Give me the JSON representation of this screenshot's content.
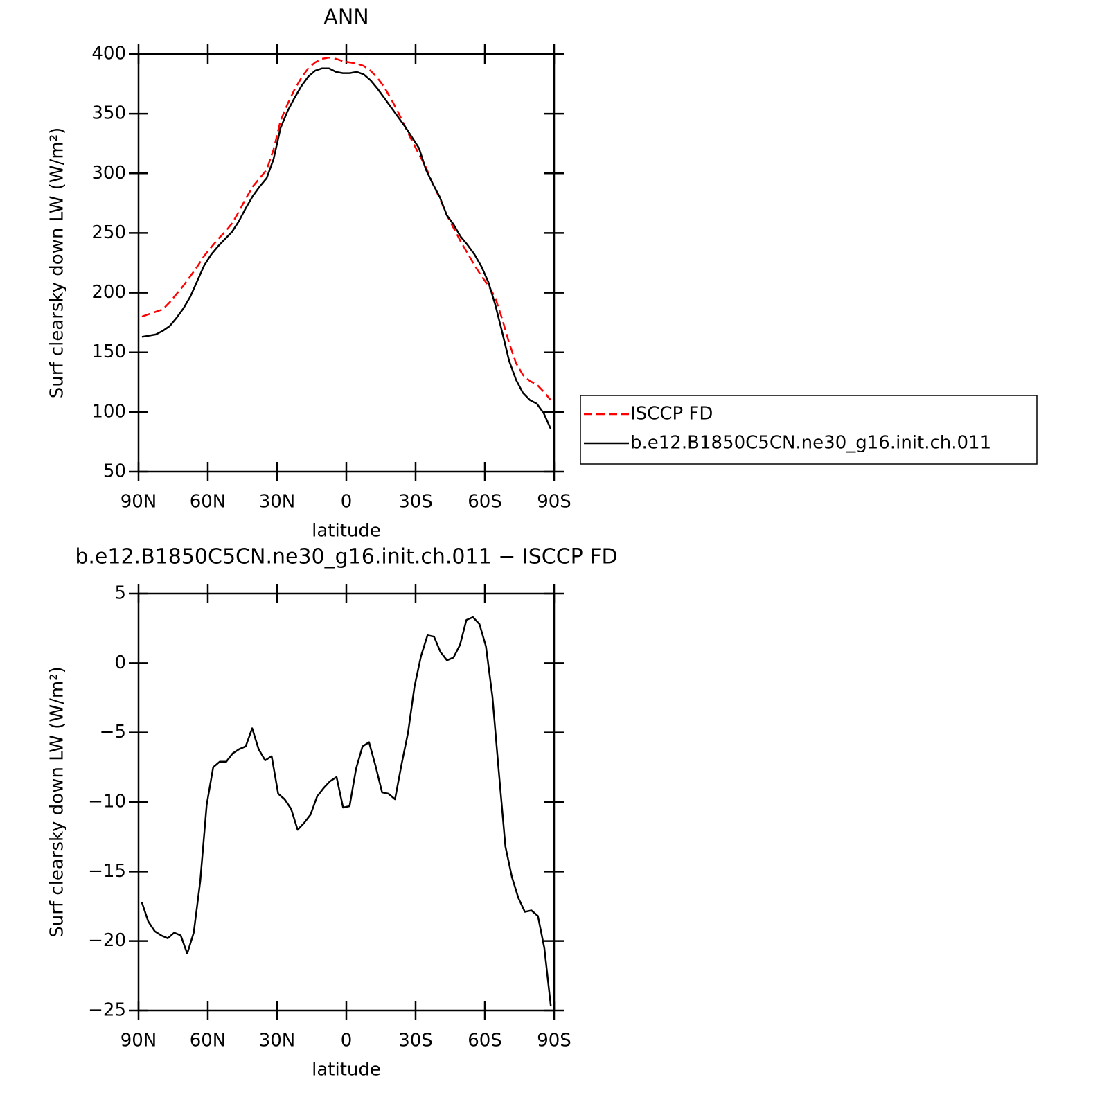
{
  "chart_data": [
    {
      "type": "line",
      "title": "ANN",
      "xlabel": "latitude",
      "ylabel": "Surf clearsky down LW (W/m²)",
      "x": [
        88.5,
        85.5,
        82.5,
        79.5,
        76.5,
        73.5,
        70.5,
        67.5,
        64.5,
        61.5,
        58.5,
        55.5,
        52.5,
        49.5,
        46.5,
        43.5,
        40.5,
        37.5,
        34.5,
        31.5,
        28.5,
        25.5,
        22.5,
        19.5,
        16.5,
        13.5,
        10.5,
        7.5,
        4.5,
        1.5,
        -1.5,
        -4.5,
        -7.5,
        -10.5,
        -13.5,
        -16.5,
        -19.5,
        -22.5,
        -25.5,
        -28.5,
        -31.5,
        -34.5,
        -37.5,
        -40.5,
        -43.5,
        -46.5,
        -49.5,
        -52.5,
        -55.5,
        -58.5,
        -61.5,
        -64.5,
        -67.5,
        -70.5,
        -73.5,
        -76.5,
        -79.5,
        -82.5,
        -85.5,
        -88.5
      ],
      "series": [
        {
          "name": "ISCCP FD",
          "color": "#ff0000",
          "dashed": true,
          "values": [
            180,
            182,
            184,
            186,
            192,
            199,
            206,
            214,
            222,
            231,
            238,
            245,
            251,
            258,
            268,
            279,
            289,
            296,
            303,
            320,
            344,
            358,
            370,
            380,
            388,
            393,
            396,
            397,
            396,
            394,
            393,
            392,
            390,
            386,
            380,
            372,
            362,
            351,
            339,
            327,
            316,
            305,
            291,
            279,
            265,
            254,
            243,
            233,
            223,
            214,
            206,
            196,
            178,
            158,
            141,
            131,
            126,
            123,
            117,
            110
          ]
        },
        {
          "name": "b.e12.B1850C5CN.ne30_g16.init.ch.011",
          "color": "#000000",
          "dashed": false,
          "values": [
            163,
            164,
            165,
            168,
            172,
            179,
            187,
            197,
            210,
            223,
            232,
            239,
            245,
            251,
            260,
            271,
            281,
            289,
            296,
            312,
            338,
            352,
            363,
            373,
            381,
            386,
            388,
            388,
            385,
            384,
            384,
            385,
            383,
            378,
            371,
            363,
            355,
            347,
            339,
            330,
            321,
            303,
            291,
            280,
            265,
            257,
            247,
            240,
            232,
            222,
            209,
            190,
            167,
            143,
            127,
            116,
            110,
            107,
            99,
            86
          ]
        }
      ],
      "xlim": [
        90,
        -90
      ],
      "xticks": [
        {
          "value": 90,
          "label": "90N"
        },
        {
          "value": 60,
          "label": "60N"
        },
        {
          "value": 30,
          "label": "30N"
        },
        0,
        {
          "value": -30,
          "label": "30S"
        },
        {
          "value": -60,
          "label": "60S"
        },
        {
          "value": -90,
          "label": "90S"
        }
      ],
      "ylim": [
        50,
        400
      ],
      "yticks": [
        50,
        100,
        150,
        200,
        250,
        300,
        350,
        400
      ],
      "legend": "right"
    },
    {
      "type": "line",
      "title": "b.e12.B1850C5CN.ne30_g16.init.ch.011 − ISCCP FD",
      "xlabel": "latitude",
      "ylabel": "Surf clearsky down LW (W/m²)",
      "x": [
        88.59,
        85.78,
        82.97,
        80.16,
        77.34,
        74.53,
        71.72,
        68.91,
        66.09,
        63.28,
        60.47,
        57.66,
        54.84,
        52.03,
        49.22,
        46.41,
        43.59,
        40.78,
        37.97,
        35.16,
        32.34,
        29.53,
        26.72,
        23.91,
        21.09,
        18.28,
        15.47,
        12.66,
        9.84,
        7.03,
        4.22,
        1.41,
        -1.41,
        -4.22,
        -7.03,
        -9.84,
        -12.66,
        -15.47,
        -18.28,
        -21.09,
        -23.91,
        -26.72,
        -29.53,
        -32.34,
        -35.16,
        -37.97,
        -40.78,
        -43.59,
        -46.41,
        -49.22,
        -52.03,
        -54.84,
        -57.66,
        -60.47,
        -63.28,
        -66.09,
        -68.91,
        -71.72,
        -74.53,
        -77.34,
        -80.16,
        -82.97,
        -85.78,
        -88.59
      ],
      "color": "#000000",
      "values": [
        -17.2,
        -18.6,
        -19.3,
        -19.6,
        -19.8,
        -19.4,
        -19.6,
        -20.9,
        -19.4,
        -15.7,
        -10.2,
        -7.5,
        -7.1,
        -7.1,
        -6.5,
        -6.2,
        -6.0,
        -4.7,
        -6.2,
        -7.0,
        -6.7,
        -9.4,
        -9.8,
        -10.5,
        -12.0,
        -11.5,
        -10.9,
        -9.6,
        -9.0,
        -8.5,
        -8.2,
        -10.4,
        -10.3,
        -7.6,
        -6.0,
        -5.7,
        -7.4,
        -9.3,
        -9.4,
        -9.8,
        -7.3,
        -5.0,
        -1.7,
        0.5,
        2.0,
        1.9,
        0.8,
        0.2,
        0.4,
        1.3,
        3.1,
        3.3,
        2.8,
        1.2,
        -2.4,
        -7.9,
        -13.2,
        -15.4,
        -16.9,
        -17.9,
        -17.8,
        -18.2,
        -20.5,
        -24.7
      ],
      "xlim": [
        90,
        -90
      ],
      "xticks": [
        {
          "value": 90,
          "label": "90N"
        },
        {
          "value": 60,
          "label": "60N"
        },
        {
          "value": 30,
          "label": "30N"
        },
        0,
        {
          "value": -30,
          "label": "30S"
        },
        {
          "value": -60,
          "label": "60S"
        },
        {
          "value": -90,
          "label": "90S"
        }
      ],
      "ylim": [
        -25,
        5
      ],
      "yticks": [
        {
          "value": -25,
          "label": "−25"
        },
        {
          "value": -20,
          "label": "−20"
        },
        {
          "value": -15,
          "label": "−15"
        },
        {
          "value": -10,
          "label": "−10"
        },
        {
          "value": -5,
          "label": "−5"
        },
        0,
        5
      ]
    }
  ]
}
